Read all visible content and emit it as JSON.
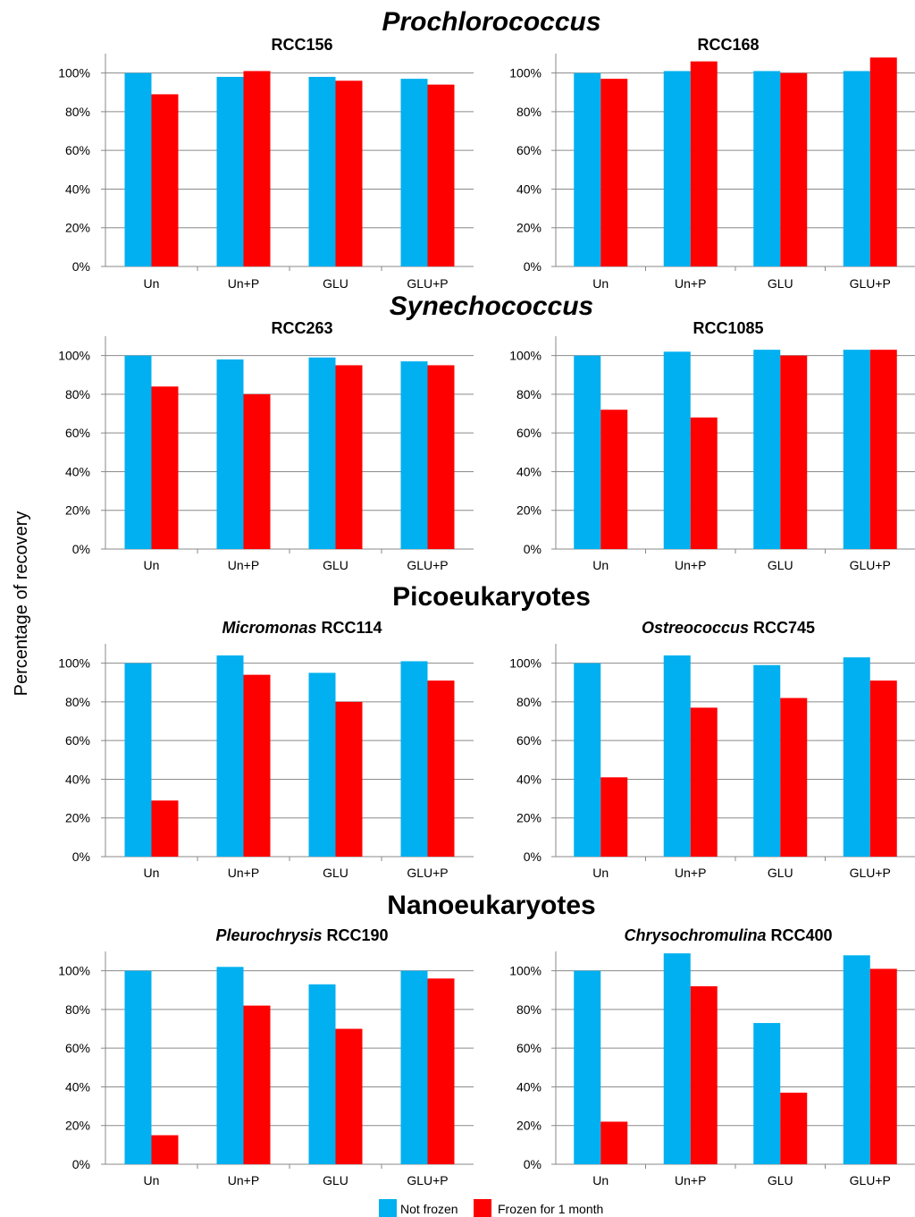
{
  "figure": {
    "ylabel": "Percentage of recovery",
    "groups": [
      {
        "title": "Prochlorococcus",
        "italic": true
      },
      {
        "title": "Synechococcus",
        "italic": true
      },
      {
        "title": "Picoeukaryotes",
        "italic": false
      },
      {
        "title": "Nanoeukaryotes",
        "italic": false
      }
    ],
    "legend": [
      {
        "label": "Not frozen",
        "color": "#00B0F0"
      },
      {
        "label": "Frozen for 1 month",
        "color": "#FF0000"
      }
    ]
  },
  "chart_data": [
    {
      "type": "bar",
      "group": "Prochlorococcus",
      "title": "RCC156",
      "title_genus": "",
      "categories": [
        "Un",
        "Un+P",
        "GLU",
        "GLU+P"
      ],
      "series": [
        {
          "name": "Not frozen",
          "values": [
            100,
            98,
            98,
            97
          ]
        },
        {
          "name": "Frozen for 1 month",
          "values": [
            89,
            101,
            96,
            94
          ]
        }
      ],
      "ylim": [
        0,
        110
      ],
      "yticks": [
        "0%",
        "20%",
        "40%",
        "60%",
        "80%",
        "100%"
      ],
      "grid": "horizontal"
    },
    {
      "type": "bar",
      "group": "Prochlorococcus",
      "title": "RCC168",
      "title_genus": "",
      "categories": [
        "Un",
        "Un+P",
        "GLU",
        "GLU+P"
      ],
      "series": [
        {
          "name": "Not frozen",
          "values": [
            100,
            101,
            101,
            101
          ]
        },
        {
          "name": "Frozen for 1 month",
          "values": [
            97,
            106,
            100,
            108
          ]
        }
      ],
      "ylim": [
        0,
        110
      ],
      "yticks": [
        "0%",
        "20%",
        "40%",
        "60%",
        "80%",
        "100%"
      ],
      "grid": "horizontal"
    },
    {
      "type": "bar",
      "group": "Synechococcus",
      "title": "RCC263",
      "title_genus": "",
      "categories": [
        "Un",
        "Un+P",
        "GLU",
        "GLU+P"
      ],
      "series": [
        {
          "name": "Not frozen",
          "values": [
            100,
            98,
            99,
            97
          ]
        },
        {
          "name": "Frozen for 1 month",
          "values": [
            84,
            80,
            95,
            95
          ]
        }
      ],
      "ylim": [
        0,
        110
      ],
      "yticks": [
        "0%",
        "20%",
        "40%",
        "60%",
        "80%",
        "100%"
      ],
      "grid": "horizontal"
    },
    {
      "type": "bar",
      "group": "Synechococcus",
      "title": "RCC1085",
      "title_genus": "",
      "categories": [
        "Un",
        "Un+P",
        "GLU",
        "GLU+P"
      ],
      "series": [
        {
          "name": "Not frozen",
          "values": [
            100,
            102,
            103,
            103
          ]
        },
        {
          "name": "Frozen for 1 month",
          "values": [
            72,
            68,
            100,
            103
          ]
        }
      ],
      "ylim": [
        0,
        110
      ],
      "yticks": [
        "0%",
        "20%",
        "40%",
        "60%",
        "80%",
        "100%"
      ],
      "grid": "horizontal"
    },
    {
      "type": "bar",
      "group": "Picoeukaryotes",
      "title": "RCC114",
      "title_genus": "Micromonas",
      "categories": [
        "Un",
        "Un+P",
        "GLU",
        "GLU+P"
      ],
      "series": [
        {
          "name": "Not frozen",
          "values": [
            100,
            104,
            95,
            101
          ]
        },
        {
          "name": "Frozen for 1 month",
          "values": [
            29,
            94,
            80,
            91
          ]
        }
      ],
      "ylim": [
        0,
        110
      ],
      "yticks": [
        "0%",
        "20%",
        "40%",
        "60%",
        "80%",
        "100%"
      ],
      "grid": "horizontal"
    },
    {
      "type": "bar",
      "group": "Picoeukaryotes",
      "title": "RCC745",
      "title_genus": "Ostreococcus",
      "categories": [
        "Un",
        "Un+P",
        "GLU",
        "GLU+P"
      ],
      "series": [
        {
          "name": "Not frozen",
          "values": [
            100,
            104,
            99,
            103
          ]
        },
        {
          "name": "Frozen for 1 month",
          "values": [
            41,
            77,
            82,
            91
          ]
        }
      ],
      "ylim": [
        0,
        110
      ],
      "yticks": [
        "0%",
        "20%",
        "40%",
        "60%",
        "80%",
        "100%"
      ],
      "grid": "horizontal"
    },
    {
      "type": "bar",
      "group": "Nanoeukaryotes",
      "title": "RCC190",
      "title_genus": "Pleurochrysis",
      "categories": [
        "Un",
        "Un+P",
        "GLU",
        "GLU+P"
      ],
      "series": [
        {
          "name": "Not frozen",
          "values": [
            100,
            102,
            93,
            100
          ]
        },
        {
          "name": "Frozen for 1 month",
          "values": [
            15,
            82,
            70,
            96
          ]
        }
      ],
      "ylim": [
        0,
        110
      ],
      "yticks": [
        "0%",
        "20%",
        "40%",
        "60%",
        "80%",
        "100%"
      ],
      "grid": "horizontal"
    },
    {
      "type": "bar",
      "group": "Nanoeukaryotes",
      "title": "RCC400",
      "title_genus": "Chrysochromulina",
      "categories": [
        "Un",
        "Un+P",
        "GLU",
        "GLU+P"
      ],
      "series": [
        {
          "name": "Not frozen",
          "values": [
            100,
            109,
            73,
            108
          ]
        },
        {
          "name": "Frozen for 1 month",
          "values": [
            22,
            92,
            37,
            101
          ]
        }
      ],
      "ylim": [
        0,
        110
      ],
      "yticks": [
        "0%",
        "20%",
        "40%",
        "60%",
        "80%",
        "100%"
      ],
      "grid": "horizontal"
    }
  ]
}
